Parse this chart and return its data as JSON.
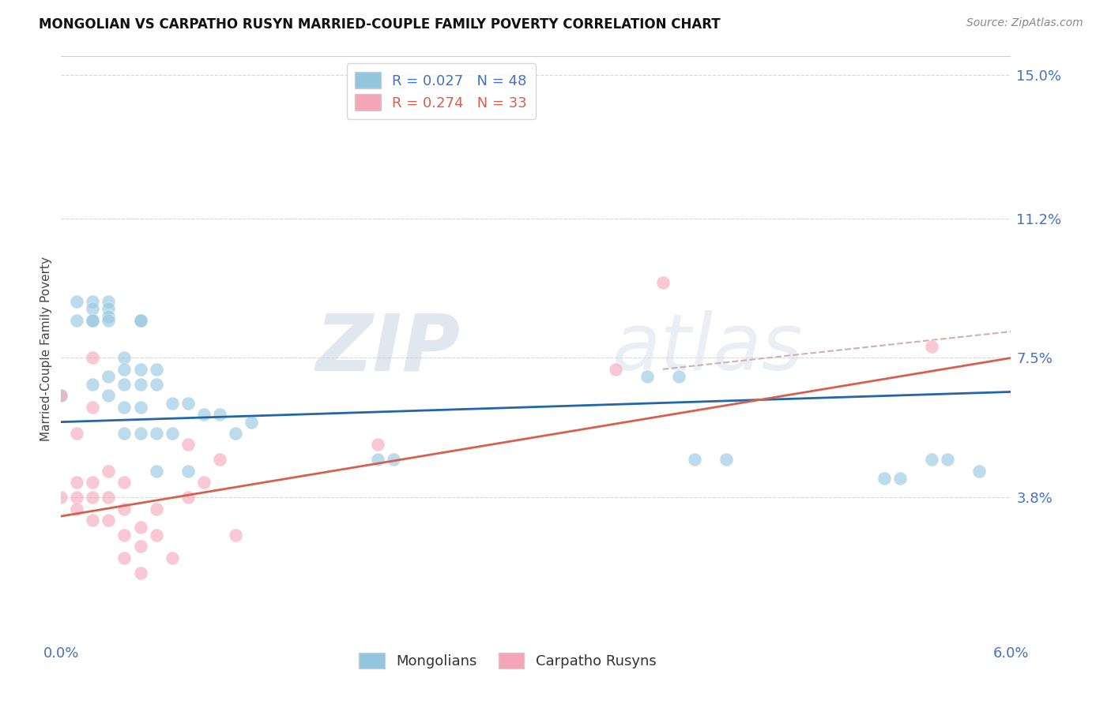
{
  "title": "MONGOLIAN VS CARPATHO RUSYN MARRIED-COUPLE FAMILY POVERTY CORRELATION CHART",
  "source": "Source: ZipAtlas.com",
  "ylabel": "Married-Couple Family Poverty",
  "legend_label_1": "R = 0.027   N = 48",
  "legend_label_2": "R = 0.274   N = 33",
  "legend_name_1": "Mongolians",
  "legend_name_2": "Carpatho Rusyns",
  "color_1": "#92c5de",
  "color_2": "#f4a6b8",
  "trendline_color_1": "#2166ac",
  "trendline_color_2": "#d6604d",
  "trendline_dashed_color": "#d0b0b0",
  "xlim": [
    0.0,
    0.06
  ],
  "ylim": [
    0.0,
    0.155
  ],
  "yticks": [
    0.038,
    0.075,
    0.112,
    0.15
  ],
  "ytick_labels": [
    "3.8%",
    "7.5%",
    "11.2%",
    "15.0%"
  ],
  "xticks": [
    0.0,
    0.01,
    0.02,
    0.03,
    0.04,
    0.05,
    0.06
  ],
  "xtick_labels": [
    "0.0%",
    "",
    "",
    "",
    "",
    "",
    "6.0%"
  ],
  "watermark_zip": "ZIP",
  "watermark_atlas": "atlas",
  "background_color": "#ffffff",
  "grid_color": "#d8d8d8",
  "mongo_trend_x": [
    0.0,
    0.06
  ],
  "mongo_trend_y": [
    0.058,
    0.066
  ],
  "rusyn_trend_x": [
    0.0,
    0.06
  ],
  "rusyn_trend_y": [
    0.033,
    0.075
  ],
  "dashed_trend_x": [
    0.038,
    0.06
  ],
  "dashed_trend_y": [
    0.072,
    0.082
  ],
  "mongolian_x": [
    0.0,
    0.001,
    0.001,
    0.002,
    0.002,
    0.002,
    0.002,
    0.002,
    0.003,
    0.003,
    0.003,
    0.003,
    0.003,
    0.003,
    0.004,
    0.004,
    0.004,
    0.004,
    0.004,
    0.005,
    0.005,
    0.005,
    0.005,
    0.005,
    0.005,
    0.006,
    0.006,
    0.006,
    0.006,
    0.007,
    0.007,
    0.008,
    0.008,
    0.009,
    0.01,
    0.011,
    0.012,
    0.02,
    0.021,
    0.037,
    0.039,
    0.04,
    0.042,
    0.052,
    0.053,
    0.055,
    0.056,
    0.058
  ],
  "mongolian_y": [
    0.065,
    0.09,
    0.085,
    0.09,
    0.088,
    0.085,
    0.085,
    0.068,
    0.09,
    0.088,
    0.086,
    0.085,
    0.07,
    0.065,
    0.075,
    0.072,
    0.068,
    0.062,
    0.055,
    0.085,
    0.085,
    0.072,
    0.068,
    0.062,
    0.055,
    0.072,
    0.068,
    0.055,
    0.045,
    0.063,
    0.055,
    0.063,
    0.045,
    0.06,
    0.06,
    0.055,
    0.058,
    0.048,
    0.048,
    0.07,
    0.07,
    0.048,
    0.048,
    0.043,
    0.043,
    0.048,
    0.048,
    0.045
  ],
  "rusyn_x": [
    0.0,
    0.0,
    0.001,
    0.001,
    0.001,
    0.001,
    0.002,
    0.002,
    0.002,
    0.002,
    0.002,
    0.003,
    0.003,
    0.003,
    0.004,
    0.004,
    0.004,
    0.004,
    0.005,
    0.005,
    0.005,
    0.006,
    0.006,
    0.007,
    0.008,
    0.008,
    0.009,
    0.01,
    0.011,
    0.02,
    0.035,
    0.038,
    0.055
  ],
  "rusyn_y": [
    0.065,
    0.038,
    0.055,
    0.042,
    0.038,
    0.035,
    0.075,
    0.062,
    0.042,
    0.038,
    0.032,
    0.045,
    0.038,
    0.032,
    0.042,
    0.035,
    0.028,
    0.022,
    0.03,
    0.025,
    0.018,
    0.035,
    0.028,
    0.022,
    0.052,
    0.038,
    0.042,
    0.048,
    0.028,
    0.052,
    0.072,
    0.095,
    0.078
  ]
}
